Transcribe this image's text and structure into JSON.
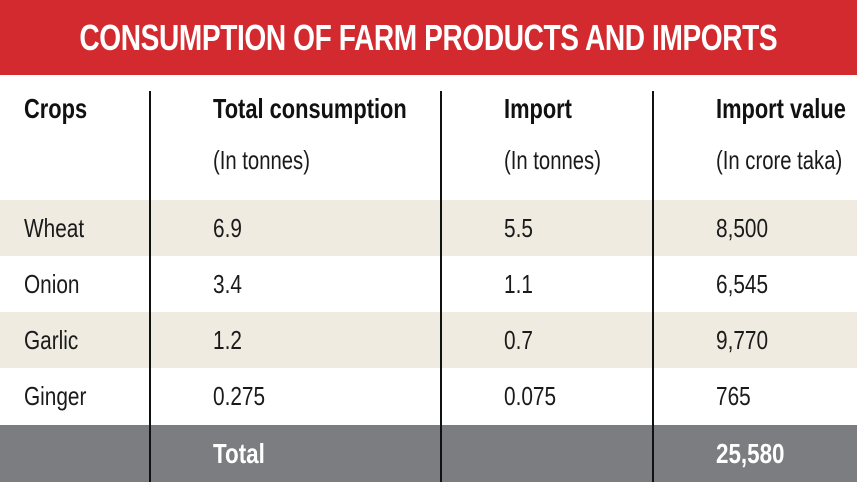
{
  "chart_data": {
    "type": "table",
    "title": "CONSUMPTION OF FARM PRODUCTS AND IMPORTS",
    "columns": [
      {
        "label": "Crops",
        "unit": ""
      },
      {
        "label": "Total consumption",
        "unit": "(In tonnes)"
      },
      {
        "label": "Import",
        "unit": "(In tonnes)"
      },
      {
        "label": "Import value",
        "unit": "(In crore taka)"
      }
    ],
    "rows": [
      {
        "crop": "Wheat",
        "total_consumption": "6.9",
        "import": "5.5",
        "import_value": "8,500"
      },
      {
        "crop": "Onion",
        "total_consumption": "3.4",
        "import": "1.1",
        "import_value": "6,545"
      },
      {
        "crop": "Garlic",
        "total_consumption": "1.2",
        "import": "0.7",
        "import_value": "9,770"
      },
      {
        "crop": "Ginger",
        "total_consumption": "0.275",
        "import": "0.075",
        "import_value": "765"
      }
    ],
    "total": {
      "label": "Total",
      "import_value": "25,580"
    }
  },
  "colors": {
    "title_bar": "#d22a2e",
    "row_shade": "#efebe1",
    "total_bar": "#7b7d80"
  }
}
